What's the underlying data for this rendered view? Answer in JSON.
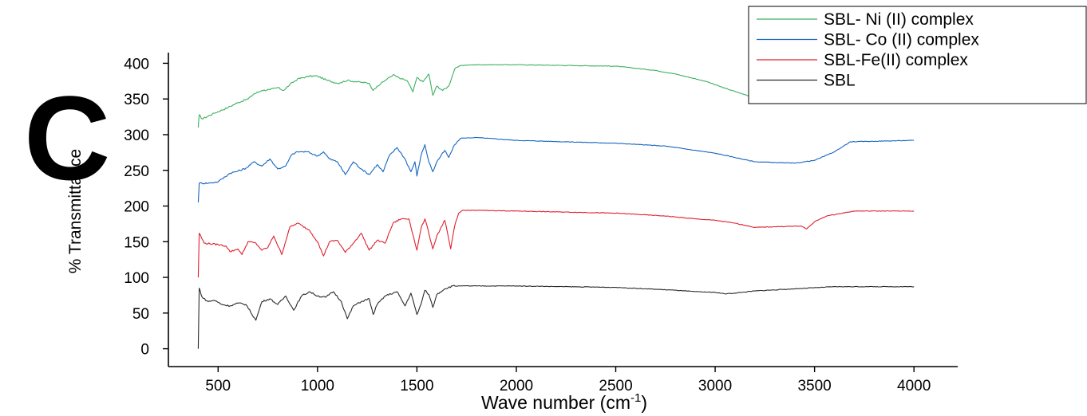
{
  "panel_label": "C",
  "chart_data": {
    "type": "line",
    "title": "",
    "xlabel": "Wave number (cm",
    "xlabel_sup": "-1",
    "xlabel_close": ")",
    "ylabel": "% Transmittance",
    "xlim": [
      250,
      4220
    ],
    "ylim": [
      -25,
      415
    ],
    "x_ticks": [
      500,
      1000,
      1500,
      2000,
      2500,
      3000,
      3500,
      4000
    ],
    "y_ticks": [
      0,
      50,
      100,
      150,
      200,
      250,
      300,
      350,
      400
    ],
    "grid": false,
    "legend_position": "top-right",
    "series": [
      {
        "name": "SBL- Ni (II) complex",
        "color": "#3cb060",
        "points": [
          [
            400,
            310
          ],
          [
            405,
            328
          ],
          [
            420,
            322
          ],
          [
            480,
            330
          ],
          [
            550,
            338
          ],
          [
            600,
            345
          ],
          [
            650,
            350
          ],
          [
            680,
            357
          ],
          [
            720,
            362
          ],
          [
            760,
            363
          ],
          [
            800,
            366
          ],
          [
            830,
            362
          ],
          [
            860,
            370
          ],
          [
            900,
            378
          ],
          [
            960,
            382
          ],
          [
            1000,
            382
          ],
          [
            1050,
            376
          ],
          [
            1100,
            372
          ],
          [
            1150,
            376
          ],
          [
            1200,
            374
          ],
          [
            1260,
            372
          ],
          [
            1280,
            362
          ],
          [
            1300,
            368
          ],
          [
            1340,
            376
          ],
          [
            1380,
            384
          ],
          [
            1420,
            378
          ],
          [
            1450,
            376
          ],
          [
            1480,
            360
          ],
          [
            1500,
            380
          ],
          [
            1530,
            374
          ],
          [
            1560,
            385
          ],
          [
            1580,
            355
          ],
          [
            1600,
            368
          ],
          [
            1630,
            362
          ],
          [
            1660,
            368
          ],
          [
            1690,
            392
          ],
          [
            1720,
            397
          ],
          [
            1800,
            398
          ],
          [
            2000,
            398
          ],
          [
            2500,
            396
          ],
          [
            2700,
            390
          ],
          [
            2800,
            385
          ],
          [
            2950,
            375
          ],
          [
            3050,
            365
          ],
          [
            3150,
            356
          ],
          [
            3200,
            352
          ],
          [
            3300,
            352
          ],
          [
            3380,
            348
          ],
          [
            3420,
            350
          ],
          [
            3480,
            362
          ],
          [
            3500,
            370
          ],
          [
            3520,
            372
          ],
          [
            3540,
            375
          ]
        ]
      },
      {
        "name": "SBL- Co (II) complex",
        "color": "#1565c0",
        "points": [
          [
            400,
            205
          ],
          [
            405,
            232
          ],
          [
            450,
            232
          ],
          [
            500,
            234
          ],
          [
            520,
            238
          ],
          [
            560,
            246
          ],
          [
            600,
            249
          ],
          [
            640,
            253
          ],
          [
            680,
            262
          ],
          [
            720,
            256
          ],
          [
            760,
            266
          ],
          [
            800,
            252
          ],
          [
            840,
            256
          ],
          [
            870,
            272
          ],
          [
            900,
            276
          ],
          [
            950,
            276
          ],
          [
            1000,
            270
          ],
          [
            1030,
            276
          ],
          [
            1060,
            266
          ],
          [
            1100,
            262
          ],
          [
            1140,
            244
          ],
          [
            1180,
            262
          ],
          [
            1220,
            252
          ],
          [
            1260,
            244
          ],
          [
            1300,
            258
          ],
          [
            1330,
            248
          ],
          [
            1360,
            270
          ],
          [
            1400,
            282
          ],
          [
            1440,
            266
          ],
          [
            1470,
            248
          ],
          [
            1490,
            262
          ],
          [
            1500,
            242
          ],
          [
            1520,
            270
          ],
          [
            1540,
            286
          ],
          [
            1560,
            262
          ],
          [
            1580,
            248
          ],
          [
            1600,
            262
          ],
          [
            1640,
            278
          ],
          [
            1660,
            268
          ],
          [
            1690,
            286
          ],
          [
            1720,
            295
          ],
          [
            1800,
            296
          ],
          [
            2000,
            292
          ],
          [
            2500,
            288
          ],
          [
            2750,
            284
          ],
          [
            2850,
            280
          ],
          [
            3000,
            274
          ],
          [
            3100,
            268
          ],
          [
            3200,
            262
          ],
          [
            3300,
            261
          ],
          [
            3400,
            260
          ],
          [
            3500,
            264
          ],
          [
            3600,
            276
          ],
          [
            3680,
            290
          ],
          [
            4000,
            292
          ]
        ]
      },
      {
        "name": "SBL-Fe(II) complex",
        "color": "#e0202e",
        "points": [
          [
            400,
            100
          ],
          [
            405,
            162
          ],
          [
            430,
            148
          ],
          [
            500,
            146
          ],
          [
            540,
            144
          ],
          [
            560,
            136
          ],
          [
            600,
            140
          ],
          [
            620,
            132
          ],
          [
            650,
            150
          ],
          [
            690,
            148
          ],
          [
            720,
            138
          ],
          [
            750,
            142
          ],
          [
            780,
            158
          ],
          [
            820,
            132
          ],
          [
            860,
            170
          ],
          [
            900,
            176
          ],
          [
            960,
            166
          ],
          [
            1000,
            150
          ],
          [
            1030,
            130
          ],
          [
            1060,
            150
          ],
          [
            1100,
            152
          ],
          [
            1140,
            135
          ],
          [
            1180,
            148
          ],
          [
            1220,
            162
          ],
          [
            1260,
            138
          ],
          [
            1300,
            152
          ],
          [
            1340,
            148
          ],
          [
            1380,
            176
          ],
          [
            1420,
            182
          ],
          [
            1460,
            182
          ],
          [
            1500,
            138
          ],
          [
            1520,
            168
          ],
          [
            1540,
            182
          ],
          [
            1560,
            162
          ],
          [
            1580,
            140
          ],
          [
            1600,
            158
          ],
          [
            1640,
            180
          ],
          [
            1670,
            140
          ],
          [
            1690,
            172
          ],
          [
            1710,
            190
          ],
          [
            1730,
            194
          ],
          [
            1800,
            194
          ],
          [
            2000,
            193
          ],
          [
            2500,
            190
          ],
          [
            2750,
            186
          ],
          [
            2900,
            182
          ],
          [
            3000,
            180
          ],
          [
            3100,
            176
          ],
          [
            3200,
            170
          ],
          [
            3300,
            171
          ],
          [
            3430,
            172
          ],
          [
            3460,
            168
          ],
          [
            3500,
            178
          ],
          [
            3560,
            186
          ],
          [
            3700,
            193
          ],
          [
            4000,
            193
          ]
        ]
      },
      {
        "name": "SBL",
        "color": "#2a2a2a",
        "points": [
          [
            400,
            0
          ],
          [
            405,
            85
          ],
          [
            420,
            72
          ],
          [
            450,
            66
          ],
          [
            480,
            68
          ],
          [
            520,
            62
          ],
          [
            560,
            60
          ],
          [
            600,
            64
          ],
          [
            640,
            62
          ],
          [
            690,
            40
          ],
          [
            720,
            66
          ],
          [
            760,
            70
          ],
          [
            800,
            62
          ],
          [
            840,
            74
          ],
          [
            880,
            54
          ],
          [
            920,
            74
          ],
          [
            960,
            80
          ],
          [
            1000,
            74
          ],
          [
            1040,
            72
          ],
          [
            1080,
            80
          ],
          [
            1120,
            66
          ],
          [
            1150,
            42
          ],
          [
            1180,
            60
          ],
          [
            1220,
            66
          ],
          [
            1260,
            70
          ],
          [
            1280,
            48
          ],
          [
            1300,
            62
          ],
          [
            1340,
            74
          ],
          [
            1400,
            80
          ],
          [
            1440,
            60
          ],
          [
            1470,
            78
          ],
          [
            1500,
            48
          ],
          [
            1520,
            62
          ],
          [
            1540,
            82
          ],
          [
            1560,
            76
          ],
          [
            1580,
            58
          ],
          [
            1600,
            76
          ],
          [
            1640,
            84
          ],
          [
            1680,
            88
          ],
          [
            1800,
            88
          ],
          [
            2000,
            88
          ],
          [
            2500,
            86
          ],
          [
            2800,
            82
          ],
          [
            2900,
            80
          ],
          [
            3000,
            79
          ],
          [
            3050,
            77
          ],
          [
            3100,
            78
          ],
          [
            3200,
            81
          ],
          [
            3400,
            84
          ],
          [
            3600,
            87
          ],
          [
            4000,
            87
          ]
        ]
      }
    ]
  }
}
